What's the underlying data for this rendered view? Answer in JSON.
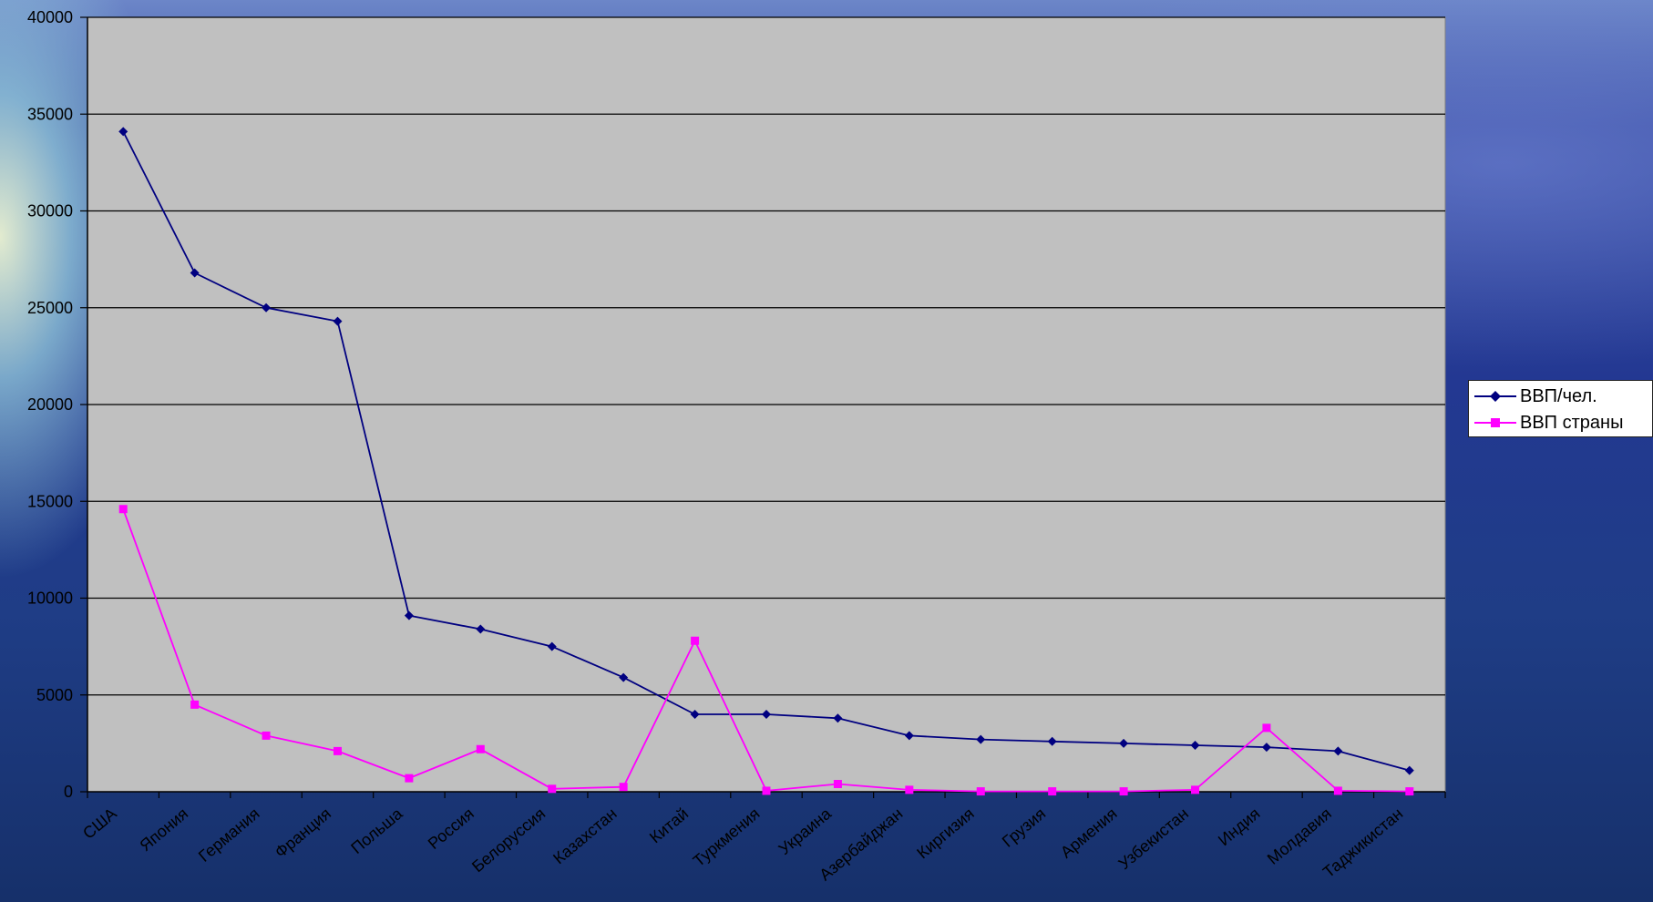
{
  "chart_data": {
    "type": "line",
    "categories": [
      "США",
      "Япония",
      "Германия",
      "Франция",
      "Польша",
      "Россия",
      "Белоруссия",
      "Казахстан",
      "Китай",
      "Туркмения",
      "Украина",
      "Азербайджан",
      "Киргизия",
      "Грузия",
      "Армения",
      "Узбекистан",
      "Индия",
      "Молдавия",
      "Таджикистан"
    ],
    "series": [
      {
        "name": "ВВП/чел.",
        "color": "#000080",
        "marker": "diamond",
        "values": [
          34100,
          26800,
          25000,
          24300,
          9100,
          8400,
          7500,
          5900,
          4000,
          4000,
          3800,
          2900,
          2700,
          2600,
          2500,
          2400,
          2300,
          2100,
          1100
        ]
      },
      {
        "name": "ВВП страны",
        "color": "#ff00ff",
        "marker": "square",
        "values": [
          14600,
          4500,
          2900,
          2100,
          700,
          2200,
          150,
          250,
          7800,
          50,
          400,
          100,
          20,
          20,
          20,
          100,
          3300,
          50,
          20
        ]
      }
    ],
    "ylim": [
      0,
      40000
    ],
    "yticks": [
      0,
      5000,
      10000,
      15000,
      20000,
      25000,
      30000,
      35000,
      40000
    ],
    "grid": true,
    "legend_position": "right",
    "plot_background": "#c0c0c0"
  },
  "legend": {
    "items": [
      {
        "label": "ВВП/чел.",
        "color": "#000080",
        "marker": "diamond"
      },
      {
        "label": "ВВП страны",
        "color": "#ff00ff",
        "marker": "square"
      }
    ]
  }
}
